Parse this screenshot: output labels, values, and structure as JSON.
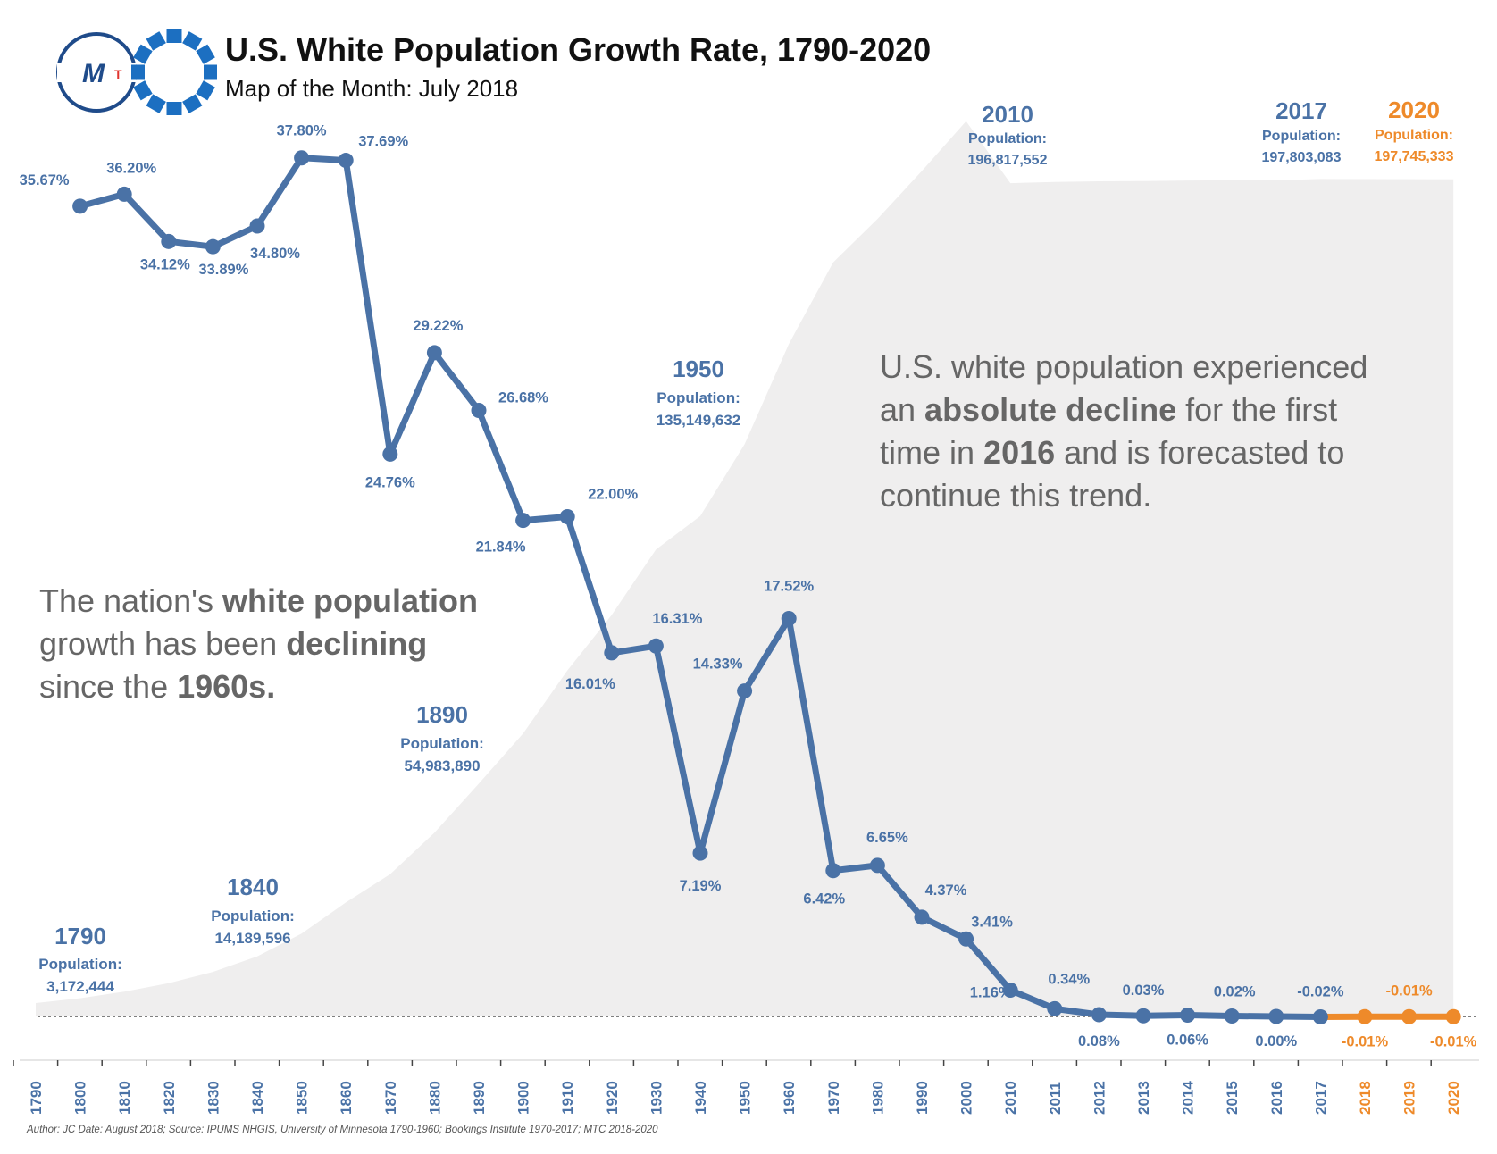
{
  "header": {
    "title": "U.S. White Population Growth Rate, 1790-2020",
    "subtitle": "Map of the Month: July 2018",
    "logo_text": "M",
    "logo_small": "T"
  },
  "colors": {
    "actual": "#4a72a6",
    "forecast": "#ee8a2a",
    "area": "#efeeee",
    "text_gray": "#666666"
  },
  "chart_data": {
    "type": "line",
    "title": "U.S. White Population Growth Rate, 1790-2020",
    "x_ticks": [
      "1790",
      "1800",
      "1810",
      "1820",
      "1830",
      "1840",
      "1850",
      "1860",
      "1870",
      "1880",
      "1890",
      "1900",
      "1910",
      "1920",
      "1930",
      "1940",
      "1950",
      "1960",
      "1970",
      "1980",
      "1990",
      "2000",
      "2010",
      "2011",
      "2012",
      "2013",
      "2014",
      "2015",
      "2016",
      "2017",
      "2018",
      "2019",
      "2020"
    ],
    "growth_rate": {
      "x": [
        "1800",
        "1810",
        "1820",
        "1830",
        "1840",
        "1850",
        "1860",
        "1870",
        "1880",
        "1890",
        "1900",
        "1910",
        "1920",
        "1930",
        "1940",
        "1950",
        "1960",
        "1970",
        "1980",
        "1990",
        "2000",
        "2010",
        "2011",
        "2012",
        "2013",
        "2014",
        "2015",
        "2016",
        "2017",
        "2018",
        "2019",
        "2020"
      ],
      "values": [
        35.67,
        36.2,
        34.12,
        33.89,
        34.8,
        37.8,
        37.69,
        24.76,
        29.22,
        26.68,
        21.84,
        22.0,
        16.01,
        16.31,
        7.19,
        14.33,
        17.52,
        6.42,
        6.65,
        4.37,
        3.41,
        1.16,
        0.34,
        0.08,
        0.03,
        0.06,
        0.02,
        0.0,
        -0.02,
        -0.01,
        -0.01,
        -0.01
      ],
      "labels": [
        "35.67%",
        "36.20%",
        "34.12%",
        "33.89%",
        "34.80%",
        "37.80%",
        "37.69%",
        "24.76%",
        "29.22%",
        "26.68%",
        "21.84%",
        "22.00%",
        "16.01%",
        "16.31%",
        "7.19%",
        "14.33%",
        "17.52%",
        "6.42%",
        "6.65%",
        "4.37%",
        "3.41%",
        "1.16%",
        "0.34%",
        "0.08%",
        "0.03%",
        "0.06%",
        "0.02%",
        "0.00%",
        "-0.02%",
        "-0.01%",
        "-0.01%",
        "-0.01%"
      ],
      "forecast_from": "2017",
      "ylim": [
        0,
        40
      ]
    },
    "population_area": {
      "x": [
        "1790",
        "1800",
        "1810",
        "1820",
        "1830",
        "1840",
        "1850",
        "1860",
        "1870",
        "1880",
        "1890",
        "1900",
        "1910",
        "1920",
        "1930",
        "1940",
        "1950",
        "1960",
        "1970",
        "1980",
        "1990",
        "2000",
        "2010",
        "2011",
        "2012",
        "2013",
        "2014",
        "2015",
        "2016",
        "2017",
        "2018",
        "2019",
        "2020"
      ],
      "values": [
        3172444,
        4306446,
        5862073,
        7866797,
        10537378,
        14189596,
        19553068,
        26922537,
        33589377,
        43402970,
        54983890,
        66809196,
        81731957,
        94820915,
        110286740,
        118214870,
        135149632,
        158831732,
        178119221,
        188371622,
        199686070,
        211460626,
        196817552,
        197100000,
        197260000,
        197320000,
        197440000,
        197480000,
        197480000,
        197803083,
        197780000,
        197760000,
        197745333
      ],
      "ylim": [
        0,
        200000000
      ]
    },
    "callouts": [
      {
        "year": "1790",
        "head": "Population:",
        "value": "3,172,444"
      },
      {
        "year": "1840",
        "head": "Population:",
        "value": "14,189,596"
      },
      {
        "year": "1890",
        "head": "Population:",
        "value": "54,983,890"
      },
      {
        "year": "1950",
        "head": "Population:",
        "value": "135,149,632"
      },
      {
        "year": "2010",
        "head": "Population:",
        "value": "196,817,552"
      },
      {
        "year": "2017",
        "head": "Population:",
        "value": "197,803,083"
      },
      {
        "year": "2020",
        "head": "Population:",
        "value": "197,745,333"
      }
    ]
  },
  "annotations": {
    "left": {
      "line1": [
        "The nation's ",
        "white population"
      ],
      "line2": [
        "growth has been ",
        "declining"
      ],
      "line3": [
        "since the ",
        "1960s."
      ]
    },
    "right": {
      "line1": [
        "U.S. white population experienced"
      ],
      "line2": [
        "an ",
        "absolute decline",
        " for the first"
      ],
      "line3": [
        "time in ",
        "2016",
        " and is forecasted to"
      ],
      "line4": [
        "continue this trend."
      ]
    }
  },
  "footer": {
    "credit": "Author: JC Date: August 2018; Source: IPUMS NHGIS, University of Minnesota 1790-1960; Bookings Institute 1970-2017; MTC 2018-2020"
  }
}
